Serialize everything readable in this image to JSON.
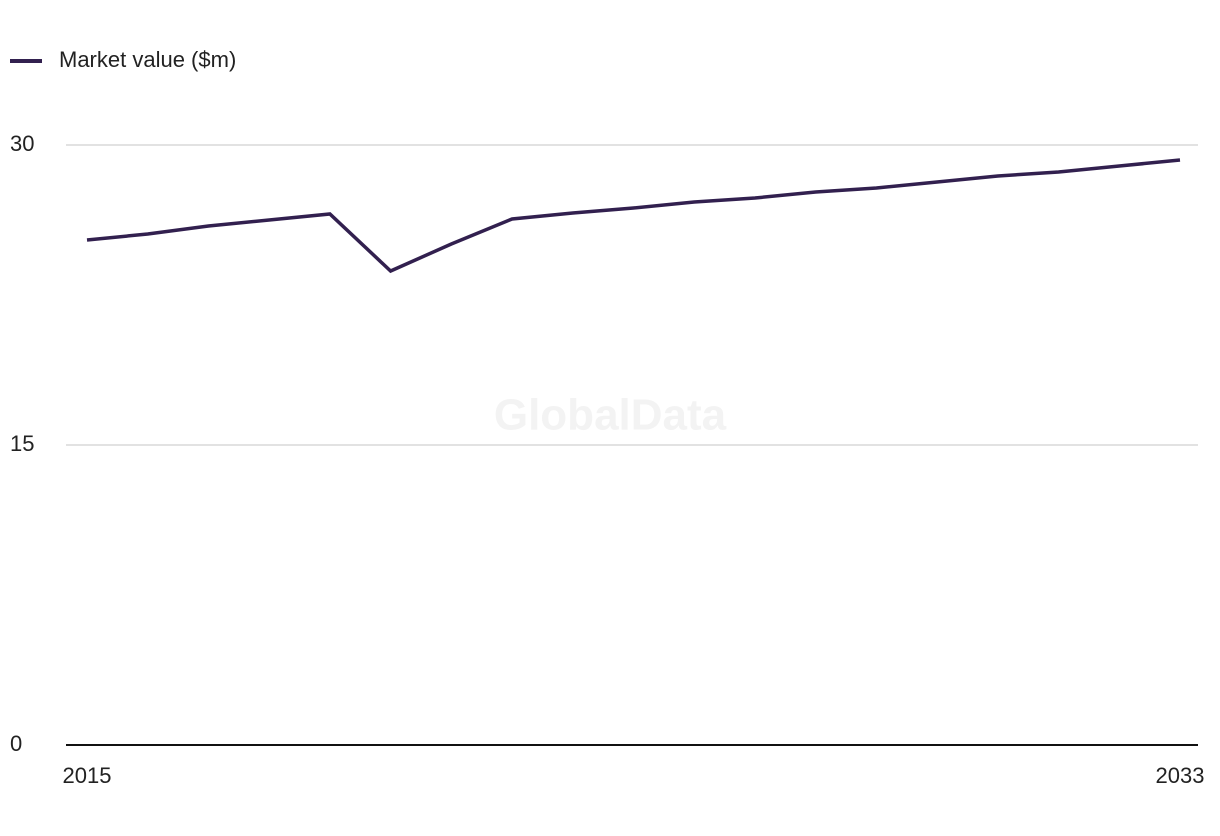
{
  "chart_data": {
    "type": "line",
    "legend": "top-left",
    "watermark": "GlobalData",
    "x": [
      2015,
      2016,
      2017,
      2018,
      2019,
      2020,
      2021,
      2022,
      2023,
      2024,
      2025,
      2026,
      2027,
      2028,
      2029,
      2030,
      2031,
      2032,
      2033
    ],
    "xlim": [
      2015,
      2033
    ],
    "xticks": [
      2015,
      2033
    ],
    "ylim": [
      0,
      30
    ],
    "yticks": [
      0,
      15,
      30
    ],
    "grid": true,
    "series": [
      {
        "name": "Market value ($m)",
        "color": "#32204f",
        "values": [
          25.25,
          25.55,
          25.95,
          26.25,
          26.55,
          23.7,
          25.05,
          26.3,
          26.6,
          26.85,
          27.15,
          27.35,
          27.65,
          27.85,
          28.15,
          28.45,
          28.65,
          28.95,
          29.25
        ]
      }
    ]
  }
}
